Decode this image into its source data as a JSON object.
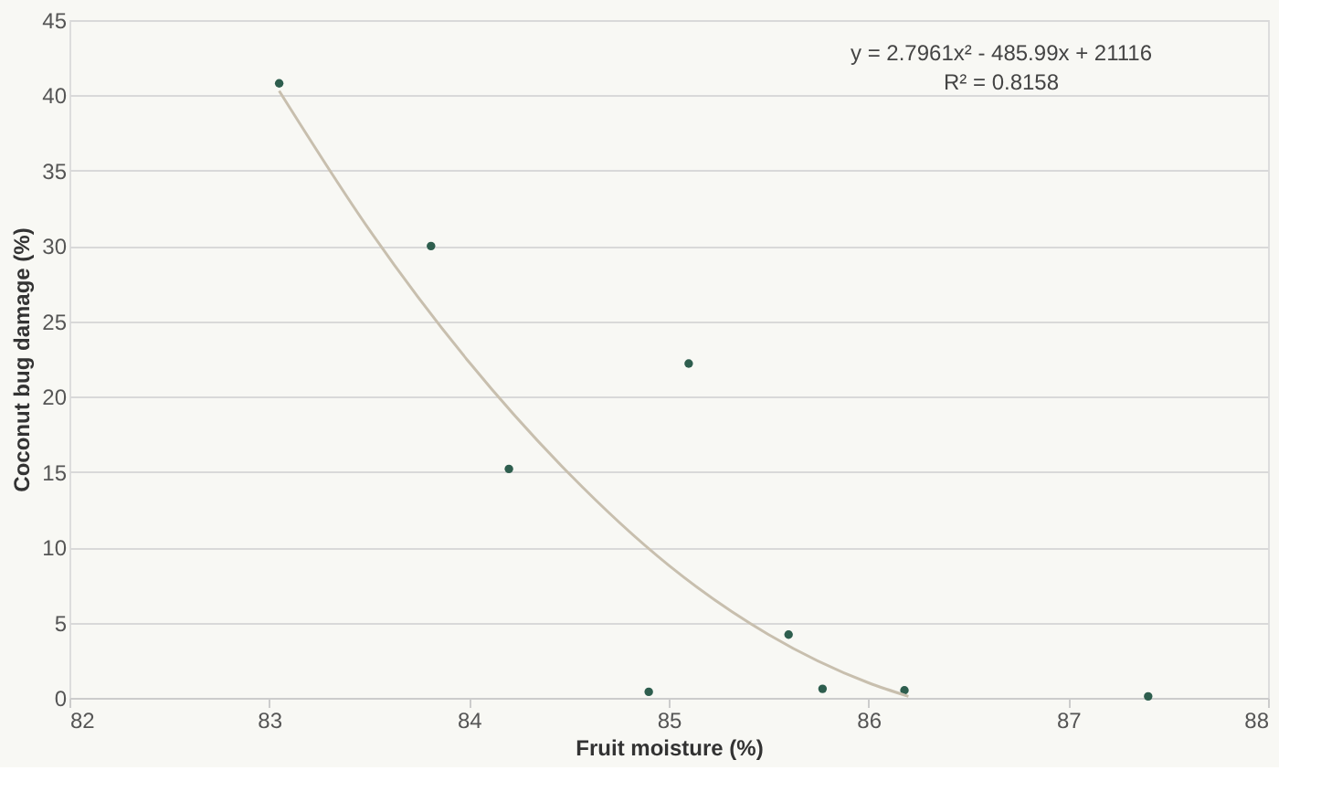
{
  "chart_data": {
    "type": "scatter",
    "xlabel": "Fruit moisture (%)",
    "ylabel": "Coconut bug damage (%)",
    "xlim": [
      82,
      88
    ],
    "xticks": [
      82,
      83,
      84,
      85,
      86,
      87,
      88
    ],
    "ylim": [
      0,
      45
    ],
    "yticks": [
      0,
      5,
      10,
      15,
      20,
      25,
      30,
      35,
      40,
      45
    ],
    "grid": "y",
    "series": [
      {
        "marker": "circle",
        "color": "#2e5e4e",
        "x": [
          83.05,
          83.81,
          84.2,
          84.9,
          85.1,
          85.6,
          85.77,
          86.18,
          87.4
        ],
        "values": [
          40.8,
          30,
          15.2,
          0.4,
          22.2,
          4.2,
          0.6,
          0.5,
          0.1
        ]
      },
      {
        "type": "line",
        "color": "#c8bfae",
        "x": [
          83.05,
          83.5,
          84,
          84.5,
          85,
          85.5,
          86,
          86.2
        ],
        "values": [
          40.3,
          31.1,
          22.3,
          14.9,
          8.8,
          4.2,
          1.0,
          0.1
        ]
      }
    ],
    "annotations": [
      "y = 2.7961x² - 485.99x + 21116",
      "R² = 0.8158"
    ]
  }
}
